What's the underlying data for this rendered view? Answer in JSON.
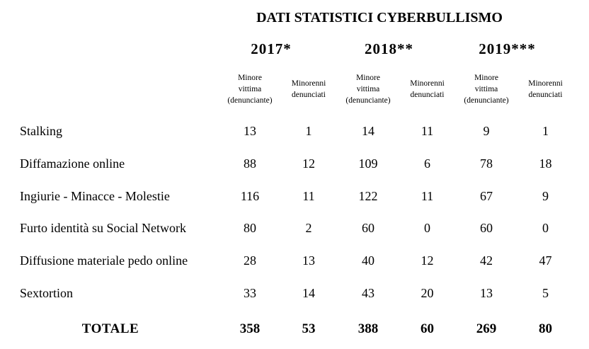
{
  "title": "DATI STATISTICI CYBERBULLISMO",
  "table": {
    "year_groups": [
      {
        "label": "2017*"
      },
      {
        "label": "2018**"
      },
      {
        "label": "2019***"
      }
    ],
    "column_headers": {
      "victim": [
        "Minore",
        "vittima",
        "(denunciante)"
      ],
      "reported": [
        "Minorenni",
        "denunciati"
      ]
    },
    "rows": [
      {
        "label": "Stalking",
        "values": [
          13,
          1,
          14,
          11,
          9,
          1
        ]
      },
      {
        "label": "Diffamazione online",
        "values": [
          88,
          12,
          109,
          6,
          78,
          18
        ]
      },
      {
        "label": "Ingiurie - Minacce - Molestie",
        "values": [
          116,
          11,
          122,
          11,
          67,
          9
        ]
      },
      {
        "label": "Furto identità su Social Network",
        "values": [
          80,
          2,
          60,
          0,
          60,
          0
        ]
      },
      {
        "label": "Diffusione materiale pedo online",
        "values": [
          28,
          13,
          40,
          12,
          42,
          47
        ]
      },
      {
        "label": "Sextortion",
        "values": [
          33,
          14,
          43,
          20,
          13,
          5
        ]
      }
    ],
    "total": {
      "label": "TOTALE",
      "values": [
        358,
        53,
        388,
        60,
        269,
        80
      ]
    }
  },
  "colors": {
    "text": "#000000",
    "background": "#ffffff"
  }
}
